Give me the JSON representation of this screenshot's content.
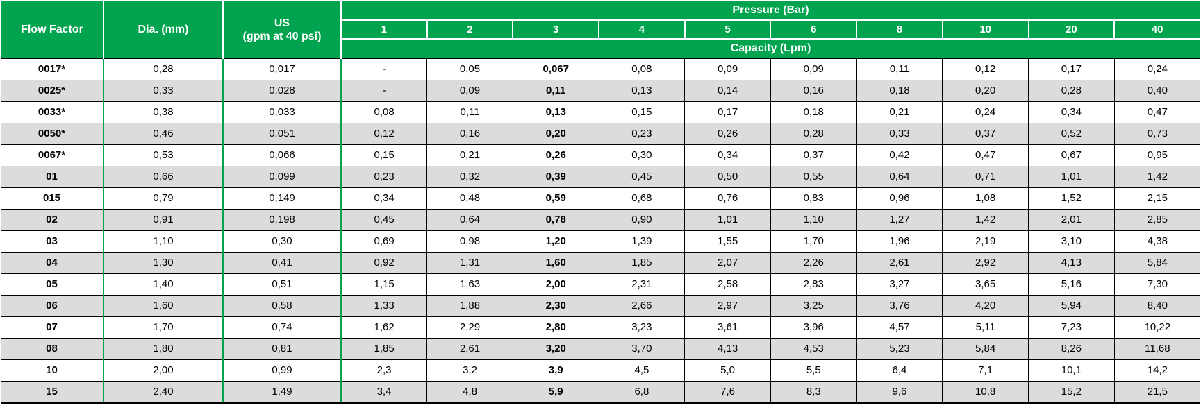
{
  "colors": {
    "header_green": "#00A44F",
    "row_alt_gray": "#DCDCDC",
    "grid_black": "#000000",
    "header_text": "#FFFFFF",
    "body_text": "#000000"
  },
  "table": {
    "headers": {
      "flow_factor": "Flow Factor",
      "dia": "Dia. (mm)",
      "us": "US\n(gpm at 40 psi)",
      "pressure_group": "Pressure (Bar)",
      "capacity_group": "Capacity (Lpm)"
    },
    "pressure_columns": [
      "1",
      "2",
      "3",
      "4",
      "5",
      "6",
      "8",
      "10",
      "20",
      "40"
    ],
    "bold_pressure_column": "3",
    "rows": [
      {
        "flow_factor": "0017*",
        "dia": "0,28",
        "us": "0,017",
        "capacities": [
          "-",
          "0,05",
          "0,067",
          "0,08",
          "0,09",
          "0,09",
          "0,11",
          "0,12",
          "0,17",
          "0,24"
        ]
      },
      {
        "flow_factor": "0025*",
        "dia": "0,33",
        "us": "0,028",
        "capacities": [
          "-",
          "0,09",
          "0,11",
          "0,13",
          "0,14",
          "0,16",
          "0,18",
          "0,20",
          "0,28",
          "0,40"
        ]
      },
      {
        "flow_factor": "0033*",
        "dia": "0,38",
        "us": "0,033",
        "capacities": [
          "0,08",
          "0,11",
          "0,13",
          "0,15",
          "0,17",
          "0,18",
          "0,21",
          "0,24",
          "0,34",
          "0,47"
        ]
      },
      {
        "flow_factor": "0050*",
        "dia": "0,46",
        "us": "0,051",
        "capacities": [
          "0,12",
          "0,16",
          "0,20",
          "0,23",
          "0,26",
          "0,28",
          "0,33",
          "0,37",
          "0,52",
          "0,73"
        ]
      },
      {
        "flow_factor": "0067*",
        "dia": "0,53",
        "us": "0,066",
        "capacities": [
          "0,15",
          "0,21",
          "0,26",
          "0,30",
          "0,34",
          "0,37",
          "0,42",
          "0,47",
          "0,67",
          "0,95"
        ]
      },
      {
        "flow_factor": "01",
        "dia": "0,66",
        "us": "0,099",
        "capacities": [
          "0,23",
          "0,32",
          "0,39",
          "0,45",
          "0,50",
          "0,55",
          "0,64",
          "0,71",
          "1,01",
          "1,42"
        ]
      },
      {
        "flow_factor": "015",
        "dia": "0,79",
        "us": "0,149",
        "capacities": [
          "0,34",
          "0,48",
          "0,59",
          "0,68",
          "0,76",
          "0,83",
          "0,96",
          "1,08",
          "1,52",
          "2,15"
        ]
      },
      {
        "flow_factor": "02",
        "dia": "0,91",
        "us": "0,198",
        "capacities": [
          "0,45",
          "0,64",
          "0,78",
          "0,90",
          "1,01",
          "1,10",
          "1,27",
          "1,42",
          "2,01",
          "2,85"
        ]
      },
      {
        "flow_factor": "03",
        "dia": "1,10",
        "us": "0,30",
        "capacities": [
          "0,69",
          "0,98",
          "1,20",
          "1,39",
          "1,55",
          "1,70",
          "1,96",
          "2,19",
          "3,10",
          "4,38"
        ]
      },
      {
        "flow_factor": "04",
        "dia": "1,30",
        "us": "0,41",
        "capacities": [
          "0,92",
          "1,31",
          "1,60",
          "1,85",
          "2,07",
          "2,26",
          "2,61",
          "2,92",
          "4,13",
          "5,84"
        ]
      },
      {
        "flow_factor": "05",
        "dia": "1,40",
        "us": "0,51",
        "capacities": [
          "1,15",
          "1,63",
          "2,00",
          "2,31",
          "2,58",
          "2,83",
          "3,27",
          "3,65",
          "5,16",
          "7,30"
        ]
      },
      {
        "flow_factor": "06",
        "dia": "1,60",
        "us": "0,58",
        "capacities": [
          "1,33",
          "1,88",
          "2,30",
          "2,66",
          "2,97",
          "3,25",
          "3,76",
          "4,20",
          "5,94",
          "8,40"
        ]
      },
      {
        "flow_factor": "07",
        "dia": "1,70",
        "us": "0,74",
        "capacities": [
          "1,62",
          "2,29",
          "2,80",
          "3,23",
          "3,61",
          "3,96",
          "4,57",
          "5,11",
          "7,23",
          "10,22"
        ]
      },
      {
        "flow_factor": "08",
        "dia": "1,80",
        "us": "0,81",
        "capacities": [
          "1,85",
          "2,61",
          "3,20",
          "3,70",
          "4,13",
          "4,53",
          "5,23",
          "5,84",
          "8,26",
          "11,68"
        ]
      },
      {
        "flow_factor": "10",
        "dia": "2,00",
        "us": "0,99",
        "capacities": [
          "2,3",
          "3,2",
          "3,9",
          "4,5",
          "5,0",
          "5,5",
          "6,4",
          "7,1",
          "10,1",
          "14,2"
        ]
      },
      {
        "flow_factor": "15",
        "dia": "2,40",
        "us": "1,49",
        "capacities": [
          "3,4",
          "4,8",
          "5,9",
          "6,8",
          "7,6",
          "8,3",
          "9,6",
          "10,8",
          "15,2",
          "21,5"
        ]
      }
    ]
  }
}
